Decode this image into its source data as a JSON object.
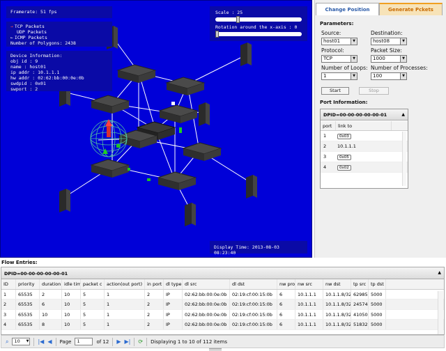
{
  "viewport": {
    "framerate": "Framerate: 51 fps",
    "legend": [
      "TCP Packets",
      "UDP Packets",
      "ICMP Packets"
    ],
    "polygons": "Number of Polygons: 2438",
    "device_title": "Device Information:",
    "device_lines": [
      "obj id  :  9",
      "name  :  host01",
      "ip addr  :  10.1.1.1",
      "hw addr  :  02:62:bb:00:0e:0b",
      "swdpid  :  0x01",
      "swport  :  2"
    ],
    "scale_label": "Scale : 25",
    "rotation_label": "Rotation around the x-axis : 0",
    "display_time": "Display Time: 2013-08-03 08:23:40"
  },
  "panel": {
    "tabs": [
      "Change Position",
      "Generate Pckets"
    ],
    "parameters_label": "Parameters:",
    "source_label": "Source:",
    "source_value": "host01",
    "destination_label": "Destination:",
    "destination_value": "host08",
    "protocol_label": "Protocol:",
    "protocol_value": "TCP",
    "packet_size_label": "Packet Size:",
    "packet_size_value": "1000",
    "loops_label": "Number of Loops:",
    "loops_value": "1",
    "processes_label": "Number of Processes:",
    "processes_value": "100",
    "start_label": "Start",
    "stop_label": "Stop",
    "port_info_label": "Port Information:",
    "port_title": "DPID=00-00-00-00-00-01",
    "port_columns": [
      "port",
      "link to"
    ],
    "ports": [
      {
        "port": "1",
        "link": "0x03"
      },
      {
        "port": "2",
        "link": "10.1.1.1"
      },
      {
        "port": "3",
        "link": "0x05"
      },
      {
        "port": "4",
        "link": "0x02"
      }
    ]
  },
  "flow": {
    "label": "Flow Entries:",
    "title": "DPID=00-00-00-00-00-01",
    "columns": [
      "ID",
      "priority",
      "duration",
      "idle tim",
      "packet c",
      "action(out port)",
      "in port",
      "dl type",
      "dl src",
      "dl dst",
      "nw pro",
      "nw src",
      "nw dst",
      "tp src",
      "tp dst"
    ],
    "rows": [
      [
        "1",
        "65535",
        "2",
        "10",
        "5",
        "1",
        "2",
        "IP",
        "02:62:bb:00:0e:0b",
        "02:19:cf:00:15:0b",
        "6",
        "10.1.1.1",
        "10.1.1.8/32",
        "62985",
        "5000"
      ],
      [
        "2",
        "65535",
        "6",
        "10",
        "5",
        "1",
        "2",
        "IP",
        "02:62:bb:00:0e:0b",
        "02:19:cf:00:15:0b",
        "6",
        "10.1.1.1",
        "10.1.1.8/32",
        "24574",
        "5000"
      ],
      [
        "3",
        "65535",
        "10",
        "10",
        "5",
        "1",
        "2",
        "IP",
        "02:62:bb:00:0e:0b",
        "02:19:cf:00:15:0b",
        "6",
        "10.1.1.1",
        "10.1.1.8/32",
        "41050",
        "5000"
      ],
      [
        "4",
        "65535",
        "8",
        "10",
        "5",
        "1",
        "2",
        "IP",
        "02:62:bb:00:0e:0b",
        "02:19:cf:00:15:0b",
        "6",
        "10.1.1.1",
        "10.1.1.8/32",
        "51832",
        "5000"
      ]
    ]
  },
  "pager": {
    "page_size": "10",
    "page_label": "Page",
    "page_value": "1",
    "of_label": "of 12",
    "display_text": "Displaying 1 to 10 of 112 items"
  }
}
